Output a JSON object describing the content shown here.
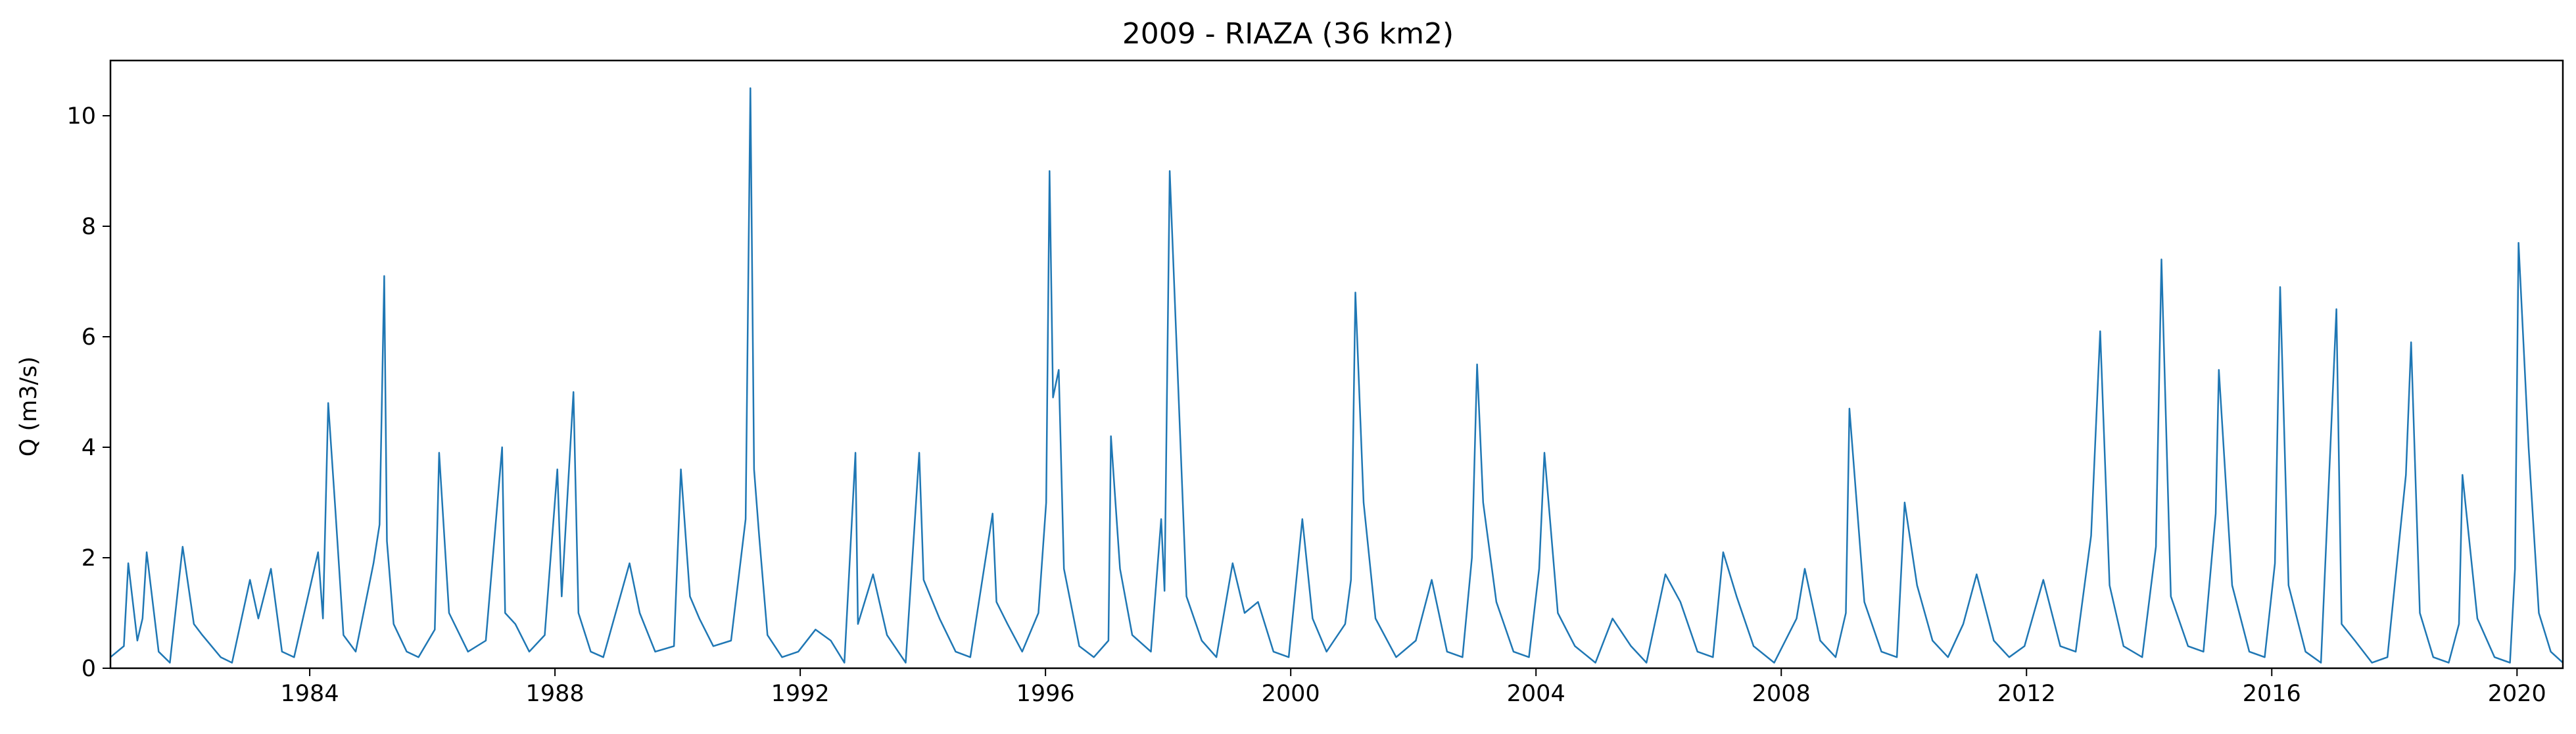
{
  "chart_data": {
    "type": "line",
    "title": "2009 - RIAZA (36 km2)",
    "xlabel": "",
    "ylabel": "Q (m3/s)",
    "xlim": [
      "1980-10-01",
      "2020-09-30"
    ],
    "ylim": [
      0,
      11
    ],
    "x_ticks": [
      "1984",
      "1988",
      "1992",
      "1996",
      "2000",
      "2004",
      "2008",
      "2012",
      "2016",
      "2020"
    ],
    "y_ticks": [
      "0",
      "2",
      "4",
      "6",
      "8",
      "10"
    ],
    "grid": false,
    "legend": "none",
    "color": "#1f77b4",
    "series": [
      {
        "x": [
          "1980-10-01",
          "1980-12-20",
          "1981-01-15",
          "1981-03-10",
          "1981-04-10",
          "1981-05-05",
          "1981-07-15",
          "1981-09-20",
          "1981-12-05",
          "1982-02-10",
          "1982-04-01",
          "1982-07-20",
          "1982-09-25",
          "1983-01-10",
          "1983-03-01",
          "1983-05-15",
          "1983-07-20",
          "1983-09-30",
          "1984-02-20",
          "1984-03-20",
          "1984-04-20",
          "1984-06-01",
          "1984-07-20",
          "1984-10-01",
          "1985-01-15",
          "1985-02-20",
          "1985-03-20",
          "1985-04-05",
          "1985-05-15",
          "1985-08-01",
          "1985-10-10",
          "1986-01-15",
          "1986-02-10",
          "1986-04-10",
          "1986-08-01",
          "1986-11-15",
          "1987-02-20",
          "1987-03-10",
          "1987-05-10",
          "1987-08-01",
          "1987-11-01",
          "1988-01-15",
          "1988-02-10",
          "1988-04-20",
          "1988-05-20",
          "1988-08-01",
          "1988-10-15",
          "1989-03-20",
          "1989-05-20",
          "1989-08-20",
          "1989-12-10",
          "1990-01-20",
          "1990-03-15",
          "1990-05-10",
          "1990-08-01",
          "1990-11-15",
          "1991-02-10",
          "1991-03-10",
          "1991-04-01",
          "1991-05-01",
          "1991-06-20",
          "1991-09-15",
          "1991-12-20",
          "1992-04-01",
          "1992-07-01",
          "1992-09-20",
          "1992-11-25",
          "1992-12-10",
          "1993-03-10",
          "1993-06-01",
          "1993-09-20",
          "1993-12-10",
          "1994-01-05",
          "1994-04-10",
          "1994-07-15",
          "1994-10-10",
          "1995-02-20",
          "1995-03-15",
          "1995-05-20",
          "1995-08-15",
          "1995-11-20",
          "1996-01-05",
          "1996-01-25",
          "1996-02-15",
          "1996-03-20",
          "1996-04-20",
          "1996-07-20",
          "1996-10-15",
          "1997-01-10",
          "1997-01-25",
          "1997-03-20",
          "1997-06-01",
          "1997-09-20",
          "1997-11-20",
          "1997-12-10",
          "1998-01-10",
          "1998-04-20",
          "1998-07-20",
          "1998-10-15",
          "1999-01-20",
          "1999-04-01",
          "1999-06-20",
          "1999-09-20",
          "1999-12-20",
          "2000-03-10",
          "2000-05-10",
          "2000-08-01",
          "2000-11-20",
          "2000-12-25",
          "2001-01-20",
          "2001-03-10",
          "2001-05-20",
          "2001-09-20",
          "2002-01-15",
          "2002-04-20",
          "2002-07-20",
          "2002-10-20",
          "2002-12-15",
          "2003-01-15",
          "2003-02-20",
          "2003-05-10",
          "2003-08-20",
          "2003-11-20",
          "2004-01-20",
          "2004-02-20",
          "2004-05-10",
          "2004-08-20",
          "2004-12-20",
          "2005-04-01",
          "2005-07-20",
          "2005-10-20",
          "2006-02-10",
          "2006-05-10",
          "2006-08-20",
          "2006-11-20",
          "2007-01-20",
          "2007-04-10",
          "2007-07-20",
          "2007-11-20",
          "2008-04-01",
          "2008-05-20",
          "2008-08-20",
          "2008-11-20",
          "2009-01-20",
          "2009-02-10",
          "2009-05-10",
          "2009-08-20",
          "2009-11-20",
          "2010-01-05",
          "2010-03-20",
          "2010-06-20",
          "2010-09-20",
          "2010-12-20",
          "2011-03-10",
          "2011-06-20",
          "2011-09-20",
          "2011-12-20",
          "2012-04-10",
          "2012-07-20",
          "2012-10-20",
          "2013-01-20",
          "2013-03-15",
          "2013-05-10",
          "2013-08-01",
          "2013-11-20",
          "2014-02-10",
          "2014-03-15",
          "2014-05-10",
          "2014-08-20",
          "2014-11-20",
          "2015-02-01",
          "2015-02-20",
          "2015-05-10",
          "2015-08-20",
          "2015-11-20",
          "2016-01-20",
          "2016-02-20",
          "2016-04-10",
          "2016-07-20",
          "2016-10-20",
          "2017-01-20",
          "2017-02-20",
          "2017-05-10",
          "2017-08-20",
          "2017-11-20",
          "2018-03-10",
          "2018-04-10",
          "2018-06-01",
          "2018-08-20",
          "2018-11-20",
          "2019-01-20",
          "2019-02-10",
          "2019-05-10",
          "2019-08-20",
          "2019-11-20",
          "2019-12-20",
          "2020-01-10",
          "2020-03-10",
          "2020-05-10",
          "2020-07-20",
          "2020-09-30"
        ],
        "y": [
          0.2,
          0.4,
          1.9,
          0.5,
          0.9,
          2.1,
          0.3,
          0.1,
          2.2,
          0.8,
          0.6,
          0.2,
          0.1,
          1.6,
          0.9,
          1.8,
          0.3,
          0.2,
          2.1,
          0.9,
          4.8,
          2.9,
          0.6,
          0.3,
          1.9,
          2.6,
          7.1,
          2.3,
          0.8,
          0.3,
          0.2,
          0.7,
          3.9,
          1.0,
          0.3,
          0.5,
          4.0,
          1.0,
          0.8,
          0.3,
          0.6,
          3.6,
          1.3,
          5.0,
          1.0,
          0.3,
          0.2,
          1.9,
          1.0,
          0.3,
          0.4,
          3.6,
          1.3,
          0.9,
          0.4,
          0.5,
          2.7,
          10.5,
          3.6,
          2.4,
          0.6,
          0.2,
          0.3,
          0.7,
          0.5,
          0.1,
          3.9,
          0.8,
          1.7,
          0.6,
          0.1,
          3.9,
          1.6,
          0.9,
          0.3,
          0.2,
          2.8,
          1.2,
          0.8,
          0.3,
          1.0,
          3.0,
          9.0,
          4.9,
          5.4,
          1.8,
          0.4,
          0.2,
          0.5,
          4.2,
          1.8,
          0.6,
          0.3,
          2.7,
          1.4,
          9.0,
          1.3,
          0.5,
          0.2,
          1.9,
          1.0,
          1.2,
          0.3,
          0.2,
          2.7,
          0.9,
          0.3,
          0.8,
          1.6,
          6.8,
          3.0,
          0.9,
          0.2,
          0.5,
          1.6,
          0.3,
          0.2,
          2.0,
          5.5,
          3.0,
          1.2,
          0.3,
          0.2,
          1.8,
          3.9,
          1.0,
          0.4,
          0.1,
          0.9,
          0.4,
          0.1,
          1.7,
          1.2,
          0.3,
          0.2,
          2.1,
          1.3,
          0.4,
          0.1,
          0.9,
          1.8,
          0.5,
          0.2,
          1.0,
          4.7,
          1.2,
          0.3,
          0.2,
          3.0,
          1.5,
          0.5,
          0.2,
          0.8,
          1.7,
          0.5,
          0.2,
          0.4,
          1.6,
          0.4,
          0.3,
          2.4,
          6.1,
          1.5,
          0.4,
          0.2,
          2.2,
          7.4,
          1.3,
          0.4,
          0.3,
          2.8,
          5.4,
          1.5,
          0.3,
          0.2,
          1.9,
          6.9,
          1.5,
          0.3,
          0.1,
          6.5,
          0.8,
          0.5,
          0.1,
          0.2,
          3.5,
          5.9,
          1.0,
          0.2,
          0.1,
          0.8,
          3.5,
          0.9,
          0.2,
          0.1,
          1.8,
          7.7,
          4.0,
          1.0,
          0.3,
          0.1
        ]
      }
    ]
  }
}
